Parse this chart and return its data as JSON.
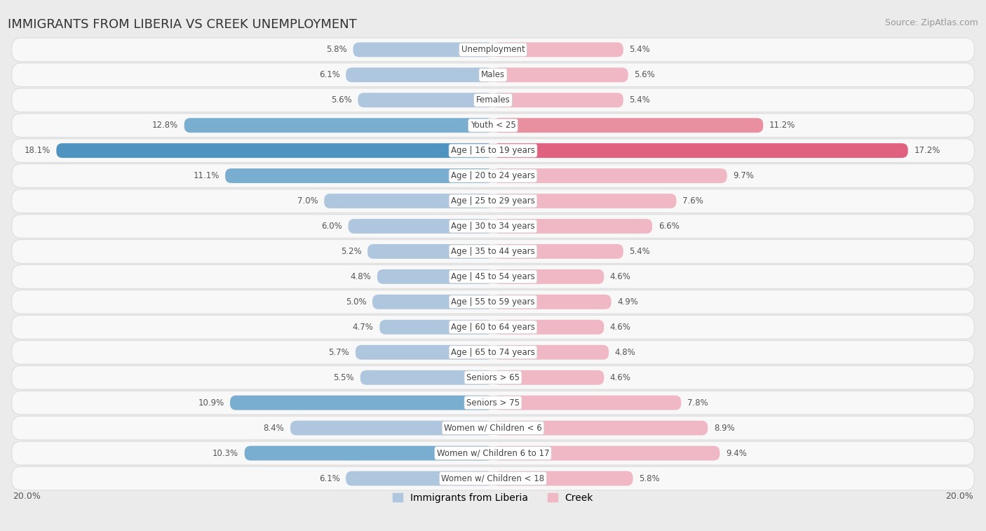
{
  "title": "IMMIGRANTS FROM LIBERIA VS CREEK UNEMPLOYMENT",
  "source": "Source: ZipAtlas.com",
  "categories": [
    "Unemployment",
    "Males",
    "Females",
    "Youth < 25",
    "Age | 16 to 19 years",
    "Age | 20 to 24 years",
    "Age | 25 to 29 years",
    "Age | 30 to 34 years",
    "Age | 35 to 44 years",
    "Age | 45 to 54 years",
    "Age | 55 to 59 years",
    "Age | 60 to 64 years",
    "Age | 65 to 74 years",
    "Seniors > 65",
    "Seniors > 75",
    "Women w/ Children < 6",
    "Women w/ Children 6 to 17",
    "Women w/ Children < 18"
  ],
  "liberia": [
    5.8,
    6.1,
    5.6,
    12.8,
    18.1,
    11.1,
    7.0,
    6.0,
    5.2,
    4.8,
    5.0,
    4.7,
    5.7,
    5.5,
    10.9,
    8.4,
    10.3,
    6.1
  ],
  "creek": [
    5.4,
    5.6,
    5.4,
    11.2,
    17.2,
    9.7,
    7.6,
    6.6,
    5.4,
    4.6,
    4.9,
    4.6,
    4.8,
    4.6,
    7.8,
    8.9,
    9.4,
    5.8
  ],
  "liberia_colors": {
    "low": "#aec6de",
    "medium": "#7aaed0",
    "high": "#4f93c0"
  },
  "creek_colors": {
    "low": "#f0b8c4",
    "medium": "#e88fa0",
    "high": "#e06080"
  },
  "max_val": 20.0,
  "bg_color": "#ebebeb",
  "row_bg_color": "#f8f8f8",
  "row_border_color": "#dddddd",
  "label_color": "#555555",
  "value_color": "#555555",
  "title_fontsize": 13,
  "legend_fontsize": 10,
  "bar_fontsize": 8.5,
  "cat_fontsize": 8.5
}
